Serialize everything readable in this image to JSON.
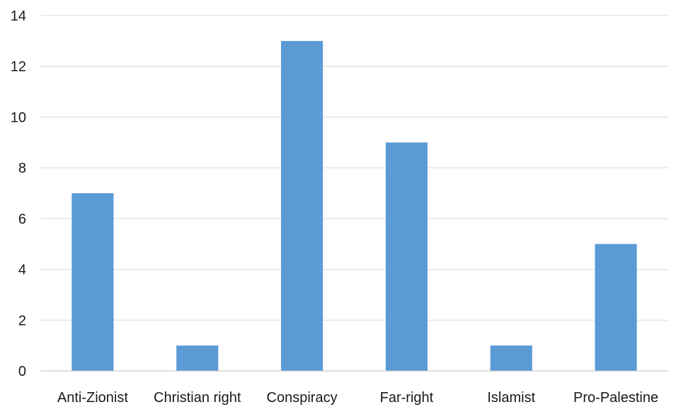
{
  "chart_data": {
    "type": "bar",
    "categories": [
      "Anti-Zionist",
      "Christian right",
      "Conspiracy",
      "Far-right",
      "Islamist",
      "Pro-Palestine"
    ],
    "values": [
      7,
      1,
      13,
      9,
      1,
      5
    ],
    "ylim": [
      0,
      14
    ],
    "yticks": [
      0,
      2,
      4,
      6,
      8,
      10,
      12,
      14
    ],
    "grid": true,
    "legend": "none",
    "colors": {
      "bar": "#5B9BD5",
      "grid": "#D9D9D9",
      "axis": "#BFBFBF",
      "text": "#1a1a1a"
    }
  }
}
